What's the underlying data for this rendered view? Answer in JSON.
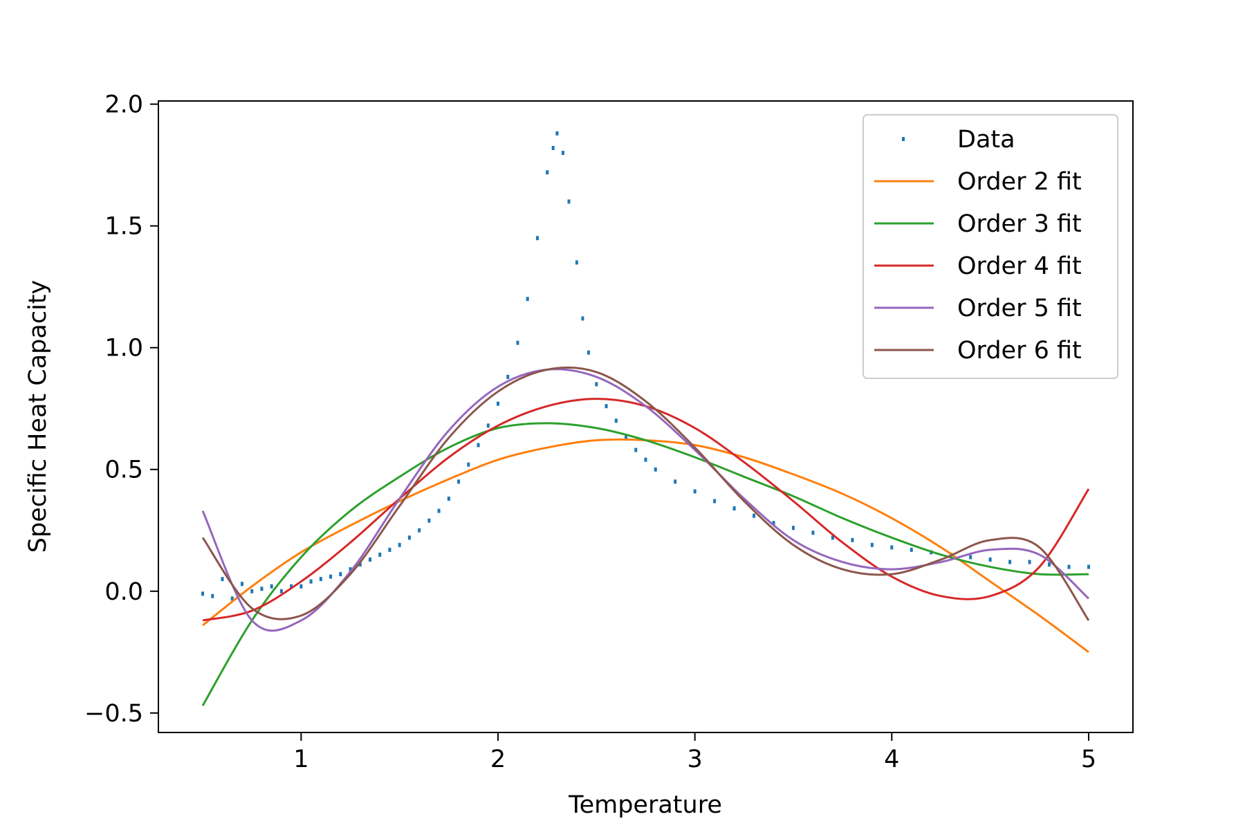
{
  "chart_data": {
    "type": "line",
    "title": "",
    "xlabel": "Temperature",
    "ylabel": "Specific Heat Capacity",
    "xlim": [
      0.275,
      5.225
    ],
    "ylim": [
      -0.58,
      2.013
    ],
    "xticks": [
      1,
      2,
      3,
      4,
      5
    ],
    "xtick_labels": [
      "1",
      "2",
      "3",
      "4",
      "5"
    ],
    "yticks": [
      -0.5,
      0.0,
      0.5,
      1.0,
      1.5,
      2.0
    ],
    "ytick_labels": [
      "−0.5",
      "0.0",
      "0.5",
      "1.0",
      "1.5",
      "2.0"
    ],
    "grid": false,
    "legend_placement": "top-right",
    "data": {
      "name": "Data",
      "color": "#1f77b4",
      "x": [
        0.5,
        0.55,
        0.6,
        0.65,
        0.7,
        0.75,
        0.8,
        0.85,
        0.9,
        0.95,
        1.0,
        1.05,
        1.1,
        1.15,
        1.2,
        1.25,
        1.3,
        1.35,
        1.4,
        1.45,
        1.5,
        1.55,
        1.6,
        1.65,
        1.7,
        1.75,
        1.8,
        1.85,
        1.9,
        1.95,
        2.0,
        2.05,
        2.1,
        2.15,
        2.2,
        2.25,
        2.28,
        2.3,
        2.33,
        2.36,
        2.4,
        2.43,
        2.46,
        2.5,
        2.55,
        2.6,
        2.65,
        2.7,
        2.75,
        2.8,
        2.9,
        3.0,
        3.1,
        3.2,
        3.3,
        3.4,
        3.5,
        3.6,
        3.7,
        3.8,
        3.9,
        4.0,
        4.1,
        4.2,
        4.3,
        4.4,
        4.5,
        4.6,
        4.7,
        4.8,
        4.9,
        5.0
      ],
      "y": [
        -0.01,
        -0.02,
        0.05,
        -0.03,
        0.03,
        0.0,
        0.01,
        0.02,
        0.0,
        0.02,
        0.02,
        0.04,
        0.05,
        0.06,
        0.07,
        0.09,
        0.11,
        0.13,
        0.15,
        0.17,
        0.19,
        0.22,
        0.25,
        0.29,
        0.33,
        0.38,
        0.45,
        0.52,
        0.6,
        0.68,
        0.77,
        0.88,
        1.02,
        1.2,
        1.45,
        1.72,
        1.82,
        1.88,
        1.8,
        1.6,
        1.35,
        1.12,
        0.98,
        0.85,
        0.76,
        0.7,
        0.63,
        0.58,
        0.54,
        0.5,
        0.45,
        0.41,
        0.37,
        0.34,
        0.31,
        0.28,
        0.26,
        0.24,
        0.22,
        0.21,
        0.19,
        0.18,
        0.17,
        0.16,
        0.15,
        0.14,
        0.13,
        0.12,
        0.12,
        0.11,
        0.1,
        0.1
      ]
    },
    "x": [
      0.5,
      0.75,
      1.0,
      1.25,
      1.5,
      1.75,
      2.0,
      2.25,
      2.5,
      2.75,
      3.0,
      3.25,
      3.5,
      3.75,
      4.0,
      4.25,
      4.5,
      4.75,
      5.0
    ],
    "series": [
      {
        "name": "Order 2 fit",
        "color": "#ff7f0e",
        "values": [
          -0.14,
          0.02,
          0.16,
          0.27,
          0.37,
          0.46,
          0.54,
          0.59,
          0.62,
          0.62,
          0.6,
          0.55,
          0.48,
          0.4,
          0.3,
          0.18,
          0.04,
          -0.1,
          -0.25
        ]
      },
      {
        "name": "Order 3 fit",
        "color": "#2ca02c",
        "values": [
          -0.47,
          -0.12,
          0.14,
          0.33,
          0.47,
          0.59,
          0.67,
          0.69,
          0.67,
          0.62,
          0.55,
          0.47,
          0.39,
          0.3,
          0.22,
          0.15,
          0.1,
          0.07,
          0.07
        ]
      },
      {
        "name": "Order 4 fit",
        "color": "#d62728",
        "values": [
          -0.12,
          -0.08,
          0.04,
          0.2,
          0.38,
          0.55,
          0.68,
          0.76,
          0.79,
          0.76,
          0.67,
          0.53,
          0.37,
          0.2,
          0.06,
          -0.02,
          -0.02,
          0.1,
          0.42
        ]
      },
      {
        "name": "Order 5 fit",
        "color": "#9467bd",
        "values": [
          0.33,
          -0.12,
          -0.12,
          0.08,
          0.38,
          0.66,
          0.84,
          0.91,
          0.88,
          0.76,
          0.58,
          0.38,
          0.21,
          0.12,
          0.09,
          0.12,
          0.17,
          0.15,
          -0.03
        ]
      },
      {
        "name": "Order 6 fit",
        "color": "#8c564b",
        "values": [
          0.22,
          -0.07,
          -0.1,
          0.07,
          0.35,
          0.63,
          0.82,
          0.91,
          0.9,
          0.78,
          0.59,
          0.37,
          0.19,
          0.09,
          0.07,
          0.13,
          0.21,
          0.18,
          -0.12
        ]
      }
    ]
  }
}
